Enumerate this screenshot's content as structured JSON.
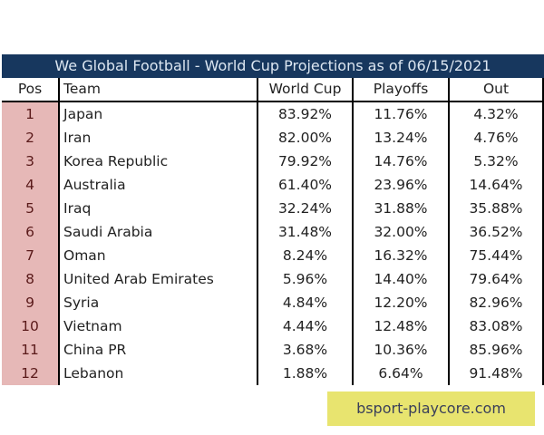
{
  "chart_data": {
    "type": "table",
    "title": "We Global Football - World Cup Projections as of 06/15/2021",
    "columns": [
      "Pos",
      "Team",
      "World Cup",
      "Playoffs",
      "Out"
    ],
    "rows": [
      [
        "1",
        "Japan",
        "83.92%",
        "11.76%",
        "4.32%"
      ],
      [
        "2",
        "Iran",
        "82.00%",
        "13.24%",
        "4.76%"
      ],
      [
        "3",
        "Korea Republic",
        "79.92%",
        "14.76%",
        "5.32%"
      ],
      [
        "4",
        "Australia",
        "61.40%",
        "23.96%",
        "14.64%"
      ],
      [
        "5",
        "Iraq",
        "32.24%",
        "31.88%",
        "35.88%"
      ],
      [
        "6",
        "Saudi Arabia",
        "31.48%",
        "32.00%",
        "36.52%"
      ],
      [
        "7",
        "Oman",
        "8.24%",
        "16.32%",
        "75.44%"
      ],
      [
        "8",
        "United Arab Emirates",
        "5.96%",
        "14.40%",
        "79.64%"
      ],
      [
        "9",
        "Syria",
        "4.84%",
        "12.20%",
        "82.96%"
      ],
      [
        "10",
        "Vietnam",
        "4.44%",
        "12.48%",
        "83.08%"
      ],
      [
        "11",
        "China PR",
        "3.68%",
        "10.36%",
        "85.96%"
      ],
      [
        "12",
        "Lebanon",
        "1.88%",
        "6.64%",
        "91.48%"
      ]
    ],
    "colors": {
      "title_bg": "#17375e",
      "pos_bg": "#e6b8b7"
    }
  },
  "watermark": "bsport-playcore.com"
}
